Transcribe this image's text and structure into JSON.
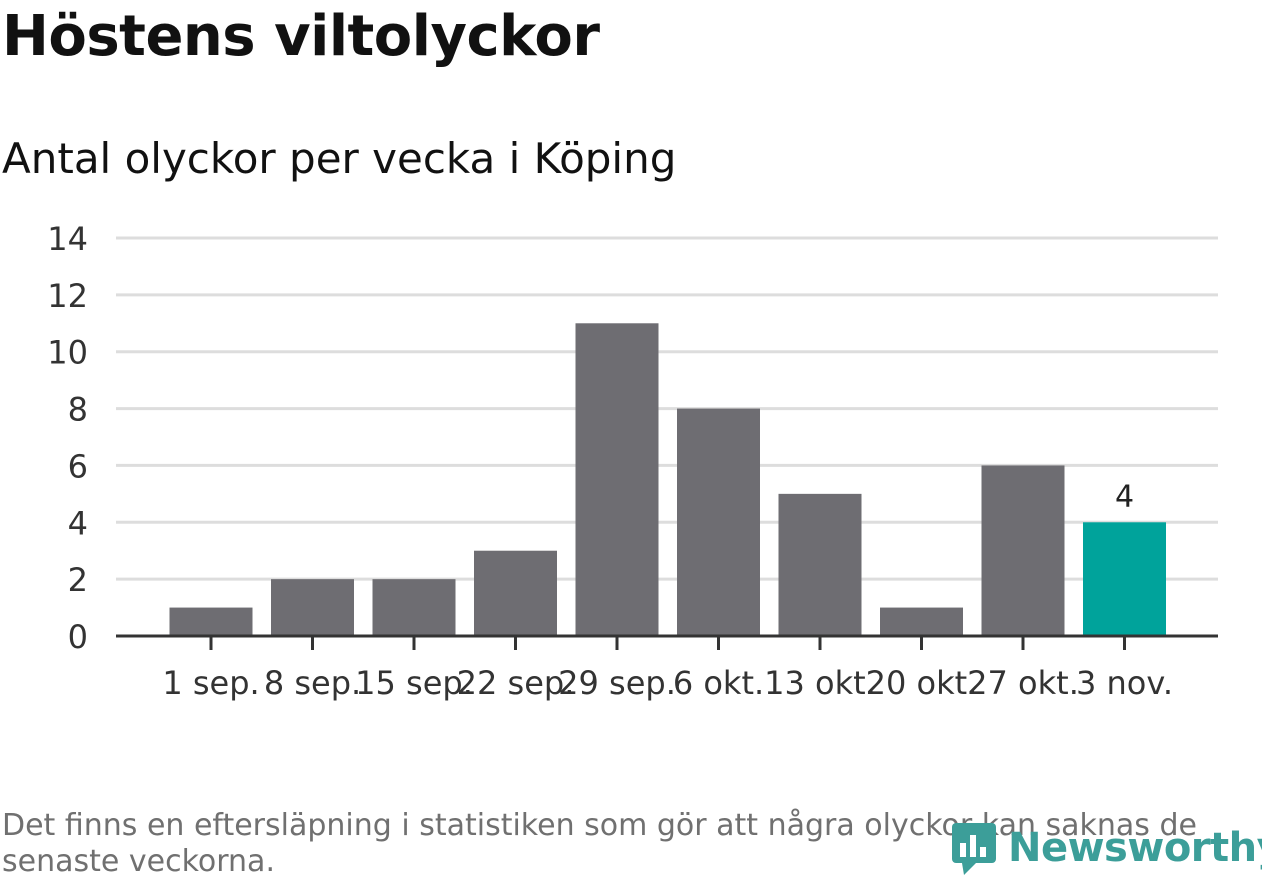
{
  "chart_data": {
    "type": "bar",
    "title": "Höstens viltolyckor",
    "subtitle": "Antal olyckor per vecka i Köping",
    "categories": [
      "1 sep.",
      "8 sep.",
      "15 sep.",
      "22 sep.",
      "29 sep.",
      "6 okt.",
      "13 okt.",
      "20 okt.",
      "27 okt.",
      "3 nov."
    ],
    "values": [
      1,
      2,
      2,
      3,
      11,
      8,
      5,
      1,
      6,
      4
    ],
    "ylim": [
      0,
      14
    ],
    "yticks": [
      0,
      2,
      4,
      6,
      8,
      10,
      12,
      14
    ],
    "grid": true,
    "highlight_index": 9,
    "bar_color": "#6e6d72",
    "highlight_color": "#00a39b",
    "data_labels": [
      {
        "index": 9,
        "text": "4"
      }
    ]
  },
  "footnote": "Det finns en eftersläpning i statistiken som gör att några olyckor kan saknas de senaste veckorna.",
  "logo": {
    "icon": "newsworthy-logo-icon",
    "text": "Newsworthy",
    "color": "#3c9e99"
  }
}
